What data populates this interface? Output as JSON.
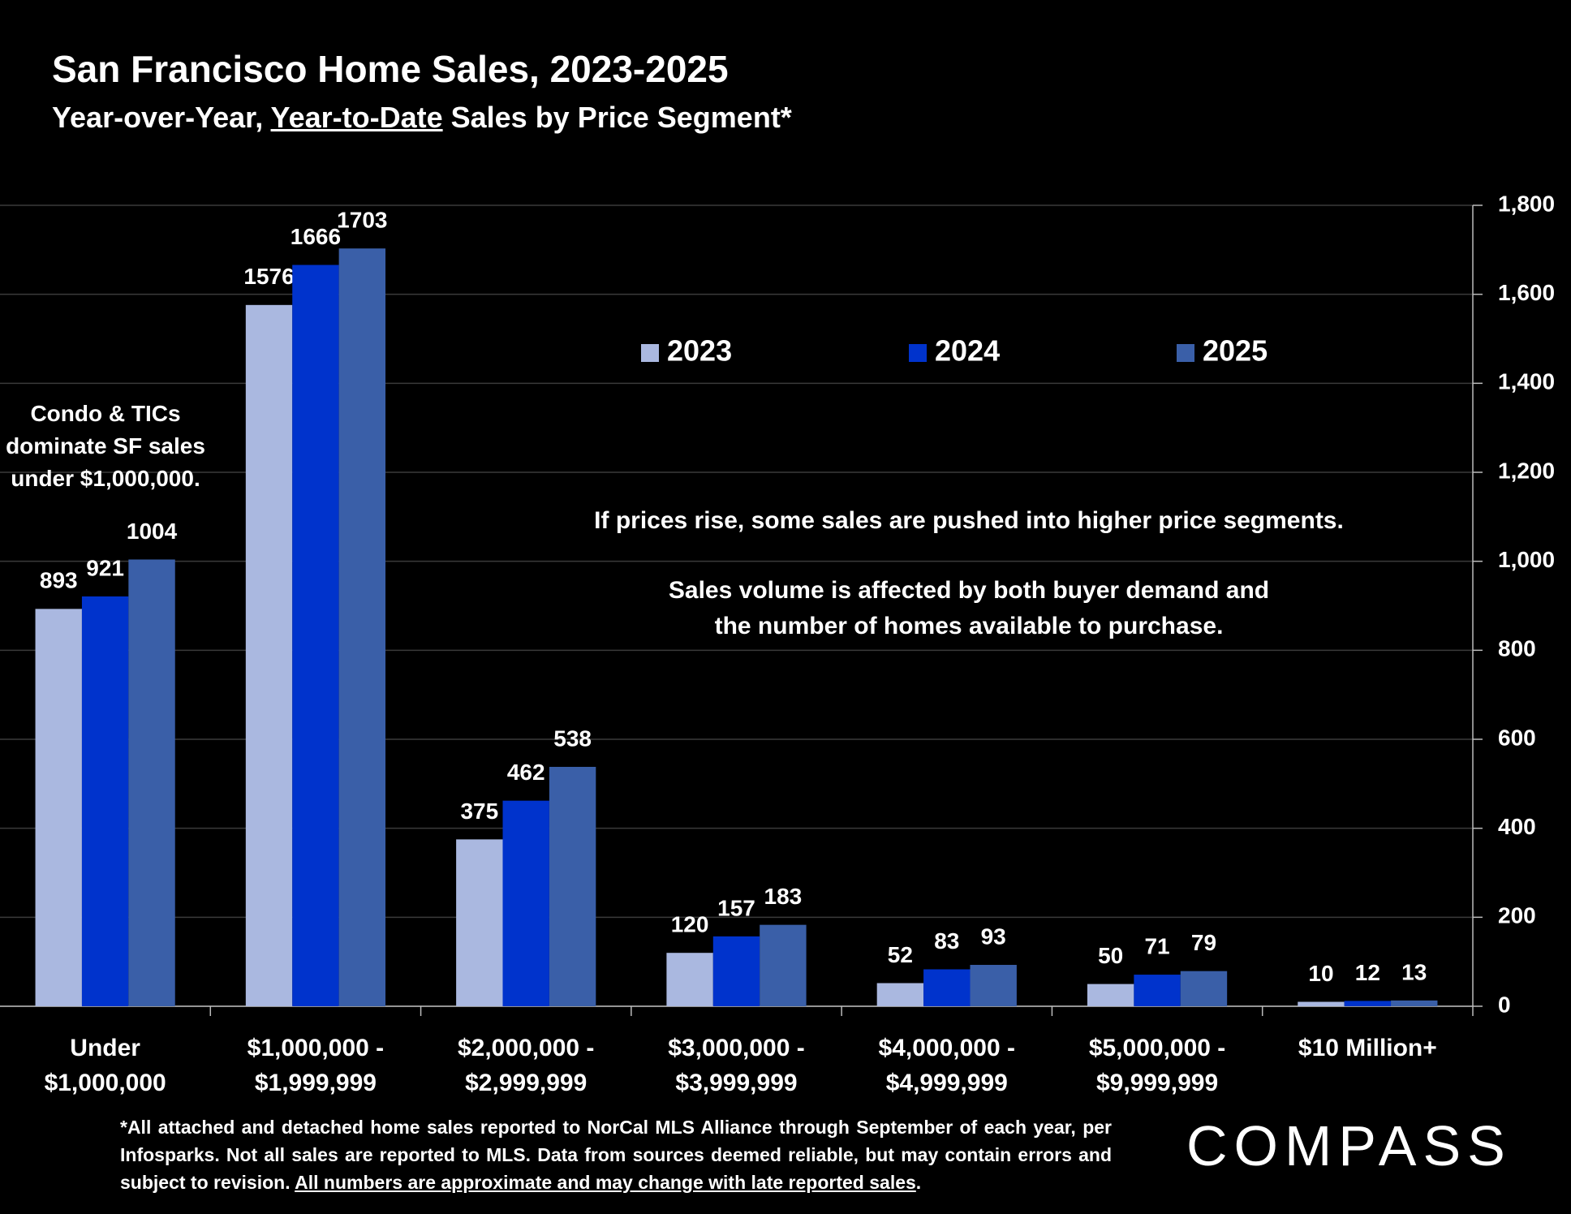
{
  "chart_data": {
    "type": "bar",
    "title": "San Francisco Home Sales, 2023-2025",
    "subtitle": [
      "Year-over-Year, ",
      "Year-to-Date",
      " Sales by Price Segment*"
    ],
    "categories": [
      "Under $1,000,000",
      "$1,000,000 - $1,999,999",
      "$2,000,000 - $2,999,999",
      "$3,000,000 - $3,999,999",
      "$4,000,000 - $4,999,999",
      "$5,000,000 - $9,999,999",
      "$10 Million+"
    ],
    "series": [
      {
        "name": "2023",
        "color": "#aab8e0",
        "values": [
          893,
          1576,
          375,
          120,
          52,
          50,
          10
        ]
      },
      {
        "name": "2024",
        "color": "#0033cc",
        "values": [
          921,
          1666,
          462,
          157,
          83,
          71,
          12
        ]
      },
      {
        "name": "2025",
        "color": "#3a5fa8",
        "values": [
          1004,
          1703,
          538,
          183,
          93,
          79,
          13
        ]
      }
    ],
    "ylim": [
      0,
      1800
    ],
    "yticks": [
      0,
      200,
      400,
      600,
      800,
      {
        "value": 1000,
        "label": "1,000"
      },
      {
        "value": 1200,
        "label": "1,200"
      },
      {
        "value": 1400,
        "label": "1,400"
      },
      {
        "value": 1600,
        "label": "1,600"
      },
      {
        "value": 1800,
        "label": "1,800"
      }
    ],
    "grid": true,
    "legend": "top",
    "annotations": [
      "Condo & TICs dominate SF sales under $1,000,000.",
      "If prices rise, some sales are pushed into higher price segments.",
      "Sales volume is affected by both buyer demand and the number of homes available to purchase."
    ]
  },
  "footer": {
    "note": [
      "*All attached and detached home sales reported to NorCal MLS Alliance through September of each year, per Infosparks. Not all sales are reported to MLS. Data from sources deemed reliable, but may contain errors and subject to revision. ",
      "All numbers are approximate and may change with late reported sales",
      "."
    ],
    "logo": "COMPASS"
  }
}
